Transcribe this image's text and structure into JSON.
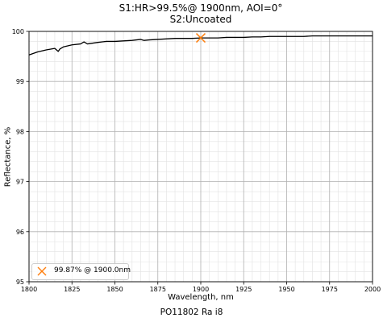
{
  "chart_data": {
    "type": "line",
    "title": "S1:HR>99.5%@ 1900nm, AOI=0°",
    "subtitle": "S2:Uncoated",
    "xlabel": "Wavelength, nm",
    "ylabel": "Reflectance, %",
    "xlim": [
      1800,
      2000
    ],
    "ylim": [
      95,
      100
    ],
    "x_ticks": [
      "1800",
      "1825",
      "1850",
      "1875",
      "1900",
      "1925",
      "1950",
      "1975",
      "2000"
    ],
    "y_ticks": [
      "95",
      "96",
      "97",
      "98",
      "99",
      "100"
    ],
    "grid": true,
    "minor_grid": true,
    "legend_position": "lower-left",
    "footer": "PO11802 Ra i8",
    "colors": {
      "line": "#000000",
      "marker": "#ff7f0e",
      "major_grid": "#b0b0b0",
      "minor_grid": "#e2e2e2"
    },
    "series": [
      {
        "x": [
          1800,
          1805,
          1810,
          1815,
          1817,
          1818,
          1820,
          1825,
          1830,
          1832,
          1834,
          1840,
          1845,
          1850,
          1855,
          1860,
          1865,
          1867,
          1870,
          1875,
          1880,
          1885,
          1890,
          1895,
          1900,
          1905,
          1910,
          1915,
          1920,
          1925,
          1930,
          1935,
          1940,
          1945,
          1950,
          1955,
          1960,
          1965,
          1970,
          1975,
          1980,
          1985,
          1990,
          1995,
          2000
        ],
        "y": [
          99.53,
          99.59,
          99.63,
          99.66,
          99.6,
          99.65,
          99.69,
          99.73,
          99.75,
          99.79,
          99.75,
          99.78,
          99.8,
          99.8,
          99.81,
          99.82,
          99.84,
          99.82,
          99.83,
          99.84,
          99.85,
          99.86,
          99.86,
          99.86,
          99.87,
          99.87,
          99.87,
          99.88,
          99.88,
          99.88,
          99.89,
          99.89,
          99.9,
          99.9,
          99.9,
          99.9,
          99.9,
          99.91,
          99.91,
          99.91,
          99.91,
          99.91,
          99.91,
          99.91,
          99.91
        ]
      }
    ],
    "marker": {
      "x": 1900.0,
      "y": 99.87,
      "label": "99.87% @ 1900.0nm"
    }
  }
}
